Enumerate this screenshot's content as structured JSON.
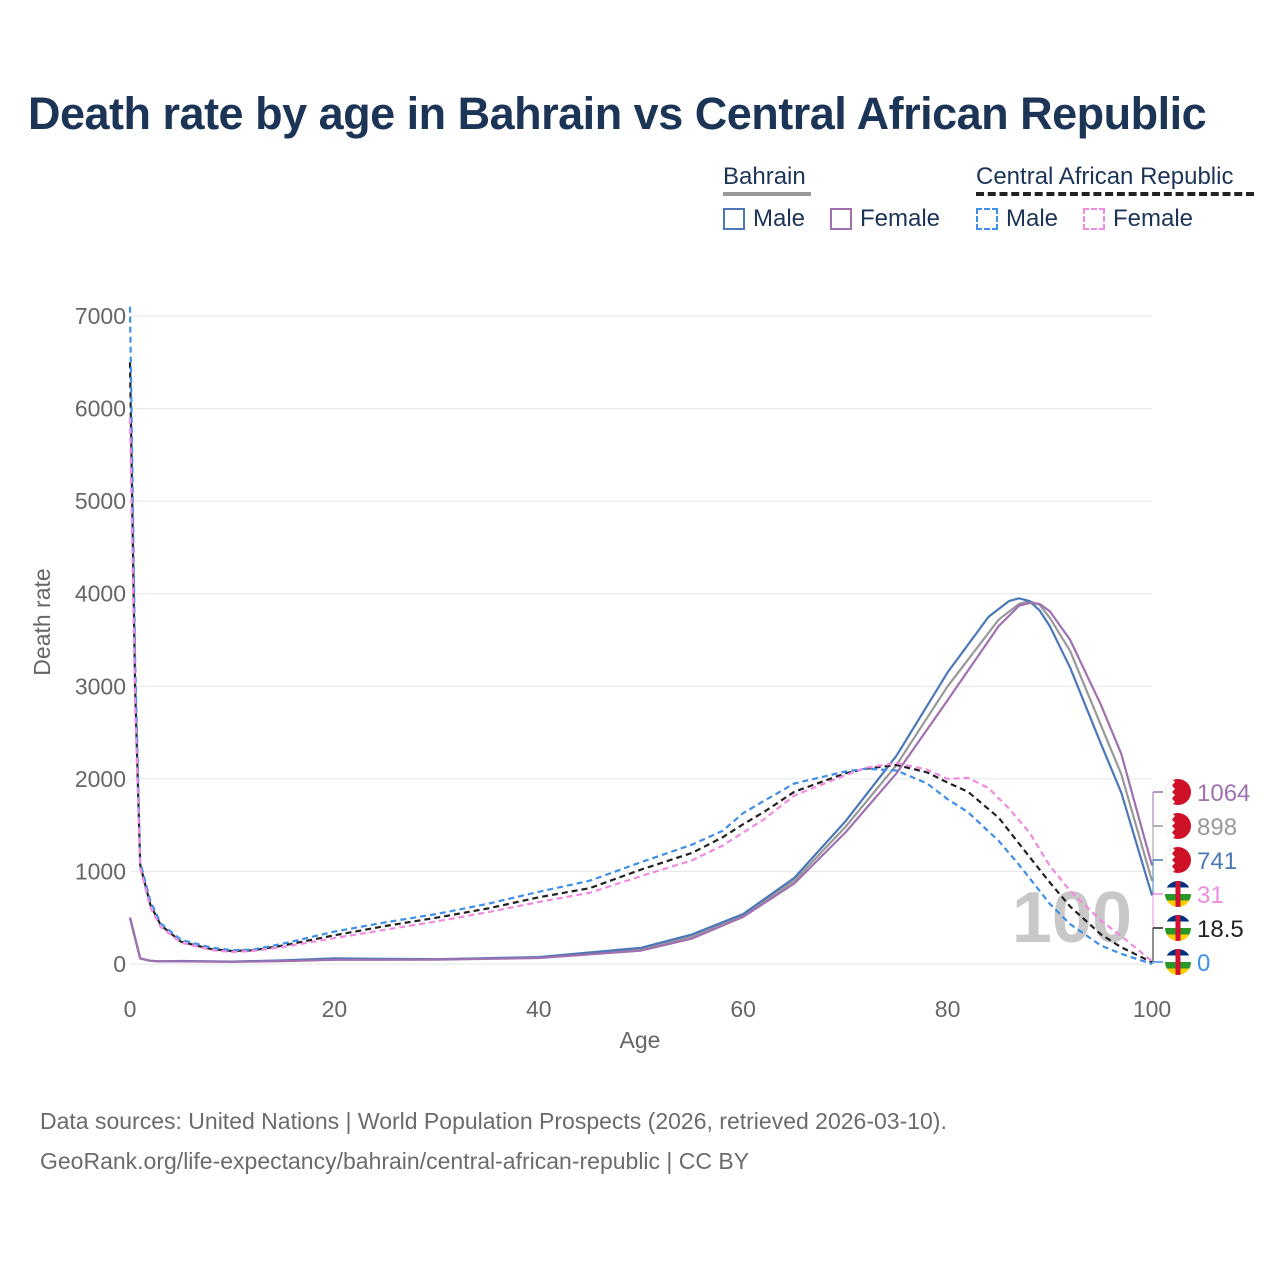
{
  "title": "Death rate by age in Bahrain vs Central African Republic",
  "legend": {
    "groups": [
      {
        "name": "Bahrain",
        "style": "solid",
        "color": "#999999"
      },
      {
        "name": "Central African Republic",
        "style": "dashed",
        "color": "#222222"
      }
    ],
    "items": [
      {
        "label": "Male",
        "group": "Bahrain",
        "color": "#4a78b8",
        "style": "solid"
      },
      {
        "label": "Female",
        "group": "Bahrain",
        "color": "#a070b0",
        "style": "solid"
      },
      {
        "label": "Male",
        "group": "Central African Republic",
        "color": "#3f8fe8",
        "style": "dashed"
      },
      {
        "label": "Female",
        "group": "Central African Republic",
        "color": "#f28ae0",
        "style": "dashed"
      }
    ]
  },
  "watermark": "100",
  "source_line1": "Data sources: United Nations | World Population Prospects (2026, retrieved 2026-03-10).",
  "source_line2": "GeoRank.org/life-expectancy/bahrain/central-african-republic | CC BY",
  "chart_data": {
    "type": "line",
    "title": "Death rate by age in Bahrain vs Central African Republic",
    "xlabel": "Age",
    "ylabel": "Death rate",
    "xlim": [
      0,
      100
    ],
    "ylim": [
      0,
      7000
    ],
    "xticks": [
      0,
      20,
      40,
      60,
      80,
      100
    ],
    "yticks": [
      0,
      1000,
      2000,
      3000,
      4000,
      5000,
      6000,
      7000
    ],
    "series": [
      {
        "name": "Bahrain total",
        "color": "#999999",
        "dash": false,
        "end_label": "898",
        "flag": "bahrain",
        "points": [
          [
            0,
            500
          ],
          [
            1,
            60
          ],
          [
            2,
            35
          ],
          [
            3,
            28
          ],
          [
            5,
            30
          ],
          [
            10,
            25
          ],
          [
            15,
            35
          ],
          [
            20,
            55
          ],
          [
            25,
            50
          ],
          [
            30,
            50
          ],
          [
            40,
            70
          ],
          [
            50,
            160
          ],
          [
            55,
            300
          ],
          [
            60,
            530
          ],
          [
            65,
            900
          ],
          [
            70,
            1480
          ],
          [
            75,
            2150
          ],
          [
            80,
            3000
          ],
          [
            85,
            3720
          ],
          [
            87,
            3890
          ],
          [
            88,
            3920
          ],
          [
            89,
            3880
          ],
          [
            90,
            3740
          ],
          [
            92,
            3380
          ],
          [
            95,
            2580
          ],
          [
            97,
            2050
          ],
          [
            100,
            898
          ]
        ]
      },
      {
        "name": "Bahrain male",
        "color": "#4a78b8",
        "dash": false,
        "end_label": "741",
        "flag": "bahrain",
        "points": [
          [
            0,
            500
          ],
          [
            1,
            60
          ],
          [
            2,
            35
          ],
          [
            3,
            28
          ],
          [
            5,
            32
          ],
          [
            10,
            26
          ],
          [
            15,
            40
          ],
          [
            20,
            62
          ],
          [
            25,
            55
          ],
          [
            30,
            52
          ],
          [
            40,
            75
          ],
          [
            50,
            175
          ],
          [
            55,
            320
          ],
          [
            60,
            540
          ],
          [
            65,
            930
          ],
          [
            70,
            1540
          ],
          [
            75,
            2250
          ],
          [
            80,
            3150
          ],
          [
            84,
            3750
          ],
          [
            86,
            3920
          ],
          [
            87,
            3950
          ],
          [
            88,
            3920
          ],
          [
            89,
            3820
          ],
          [
            90,
            3650
          ],
          [
            92,
            3200
          ],
          [
            95,
            2380
          ],
          [
            97,
            1850
          ],
          [
            100,
            741
          ]
        ]
      },
      {
        "name": "Bahrain female",
        "color": "#a070b0",
        "dash": false,
        "end_label": "1064",
        "flag": "bahrain",
        "points": [
          [
            0,
            500
          ],
          [
            1,
            60
          ],
          [
            2,
            35
          ],
          [
            3,
            28
          ],
          [
            5,
            28
          ],
          [
            10,
            24
          ],
          [
            15,
            30
          ],
          [
            20,
            45
          ],
          [
            25,
            45
          ],
          [
            30,
            48
          ],
          [
            40,
            65
          ],
          [
            50,
            145
          ],
          [
            55,
            275
          ],
          [
            60,
            510
          ],
          [
            65,
            870
          ],
          [
            70,
            1420
          ],
          [
            75,
            2060
          ],
          [
            80,
            2850
          ],
          [
            85,
            3650
          ],
          [
            87,
            3870
          ],
          [
            88,
            3900
          ],
          [
            89,
            3890
          ],
          [
            90,
            3810
          ],
          [
            92,
            3500
          ],
          [
            95,
            2800
          ],
          [
            97,
            2270
          ],
          [
            100,
            1064
          ]
        ]
      },
      {
        "name": "Central African Republic total",
        "color": "#222222",
        "dash": true,
        "end_label": "18.5",
        "flag": "car",
        "points": [
          [
            0,
            6500
          ],
          [
            0.5,
            3000
          ],
          [
            1,
            1070
          ],
          [
            2,
            640
          ],
          [
            3,
            420
          ],
          [
            5,
            240
          ],
          [
            8,
            160
          ],
          [
            10,
            140
          ],
          [
            12,
            148
          ],
          [
            15,
            200
          ],
          [
            20,
            310
          ],
          [
            25,
            410
          ],
          [
            30,
            500
          ],
          [
            35,
            600
          ],
          [
            40,
            720
          ],
          [
            45,
            820
          ],
          [
            50,
            1020
          ],
          [
            55,
            1200
          ],
          [
            58,
            1370
          ],
          [
            60,
            1510
          ],
          [
            62,
            1640
          ],
          [
            65,
            1860
          ],
          [
            70,
            2060
          ],
          [
            72,
            2110
          ],
          [
            75,
            2150
          ],
          [
            78,
            2070
          ],
          [
            80,
            1960
          ],
          [
            82,
            1860
          ],
          [
            85,
            1580
          ],
          [
            87,
            1300
          ],
          [
            90,
            880
          ],
          [
            92,
            620
          ],
          [
            95,
            320
          ],
          [
            97,
            180
          ],
          [
            100,
            18.5
          ]
        ]
      },
      {
        "name": "Central African Republic male",
        "color": "#3f8fe8",
        "dash": true,
        "end_label": "0",
        "flag": "car",
        "points": [
          [
            0,
            7100
          ],
          [
            0.5,
            3300
          ],
          [
            1,
            1100
          ],
          [
            2,
            680
          ],
          [
            3,
            440
          ],
          [
            5,
            260
          ],
          [
            8,
            175
          ],
          [
            10,
            150
          ],
          [
            12,
            155
          ],
          [
            15,
            220
          ],
          [
            20,
            350
          ],
          [
            25,
            450
          ],
          [
            30,
            540
          ],
          [
            35,
            650
          ],
          [
            40,
            780
          ],
          [
            45,
            900
          ],
          [
            50,
            1100
          ],
          [
            55,
            1290
          ],
          [
            58,
            1440
          ],
          [
            60,
            1630
          ],
          [
            62,
            1760
          ],
          [
            65,
            1950
          ],
          [
            70,
            2080
          ],
          [
            72,
            2110
          ],
          [
            75,
            2090
          ],
          [
            78,
            1950
          ],
          [
            80,
            1780
          ],
          [
            82,
            1640
          ],
          [
            85,
            1330
          ],
          [
            87,
            1070
          ],
          [
            90,
            650
          ],
          [
            92,
            430
          ],
          [
            95,
            200
          ],
          [
            97,
            110
          ],
          [
            100,
            0
          ]
        ]
      },
      {
        "name": "Central African Republic female",
        "color": "#f28ae0",
        "dash": true,
        "end_label": "31",
        "flag": "car",
        "points": [
          [
            0,
            5900
          ],
          [
            0.5,
            2800
          ],
          [
            1,
            1040
          ],
          [
            2,
            610
          ],
          [
            3,
            400
          ],
          [
            5,
            230
          ],
          [
            8,
            150
          ],
          [
            10,
            130
          ],
          [
            12,
            140
          ],
          [
            15,
            185
          ],
          [
            20,
            280
          ],
          [
            25,
            370
          ],
          [
            30,
            460
          ],
          [
            35,
            560
          ],
          [
            40,
            670
          ],
          [
            45,
            770
          ],
          [
            50,
            950
          ],
          [
            55,
            1120
          ],
          [
            58,
            1280
          ],
          [
            60,
            1420
          ],
          [
            62,
            1560
          ],
          [
            65,
            1820
          ],
          [
            70,
            2040
          ],
          [
            72,
            2120
          ],
          [
            75,
            2170
          ],
          [
            78,
            2100
          ],
          [
            80,
            2000
          ],
          [
            82,
            2010
          ],
          [
            84,
            1900
          ],
          [
            86,
            1680
          ],
          [
            88,
            1420
          ],
          [
            90,
            1060
          ],
          [
            92,
            790
          ],
          [
            95,
            470
          ],
          [
            97,
            300
          ],
          [
            100,
            31
          ]
        ]
      }
    ]
  }
}
